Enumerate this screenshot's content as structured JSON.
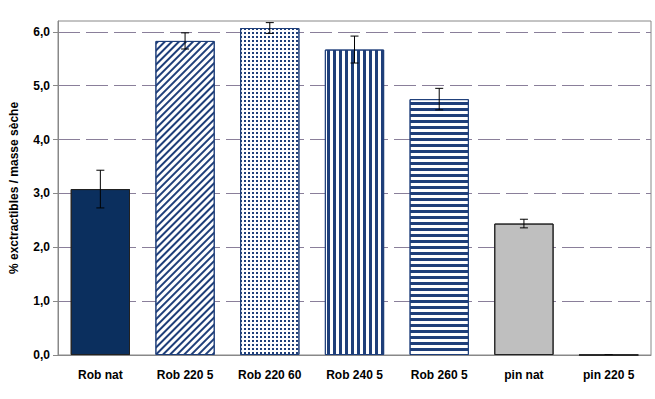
{
  "chart_data": {
    "type": "bar",
    "y_label": "% exctractibles / masse sèche",
    "categories": [
      "Rob nat",
      "Rob 220 5",
      "Rob 220 60",
      "Rob 240 5",
      "Rob 260 5",
      "pin nat",
      "pin 220 5"
    ],
    "values": [
      3.08,
      5.83,
      6.07,
      5.67,
      4.75,
      2.44,
      0
    ],
    "errors": [
      0.35,
      0.15,
      0.1,
      0.25,
      0.2,
      0.08,
      0
    ],
    "colors": [
      "#0b2f5e",
      "#1f3f7a",
      "#1f3f7a",
      "#1f3f7a",
      "#1f3f7a",
      "#bfbfbf",
      "#bfbfbf"
    ],
    "ylim": [
      0,
      6.2
    ],
    "yticks": [
      {
        "value": 0,
        "label": "0,0"
      },
      {
        "value": 1,
        "label": "1,0"
      },
      {
        "value": 2,
        "label": "2,0"
      },
      {
        "value": 3,
        "label": "3,0"
      },
      {
        "value": 4,
        "label": "4,0"
      },
      {
        "value": 5,
        "label": "5,0"
      },
      {
        "value": 6,
        "label": "6,0"
      }
    ],
    "grid": true
  }
}
